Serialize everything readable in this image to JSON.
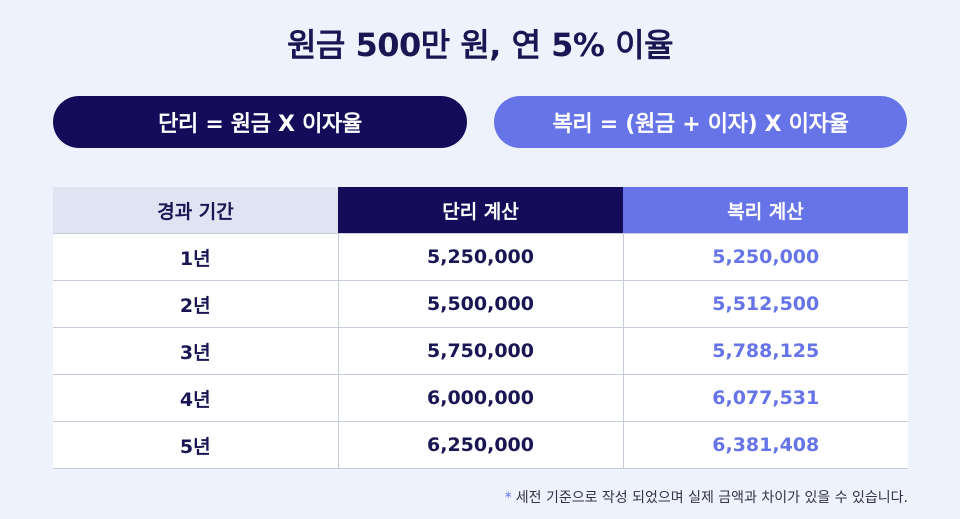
{
  "title": "원금 500만 원, 연 5% 이율",
  "formulas": {
    "simple": "단리 = 원금 X 이자율",
    "compound": "복리 = (원금 + 이자) X 이자율"
  },
  "table": {
    "headers": [
      "경과 기간",
      "단리 계산",
      "복리 계산"
    ],
    "rows": [
      {
        "period": "1년",
        "simple": "5,250,000",
        "compound": "5,250,000"
      },
      {
        "period": "2년",
        "simple": "5,500,000",
        "compound": "5,512,500"
      },
      {
        "period": "3년",
        "simple": "5,750,000",
        "compound": "5,788,125"
      },
      {
        "period": "4년",
        "simple": "6,000,000",
        "compound": "6,077,531"
      },
      {
        "period": "5년",
        "simple": "6,250,000",
        "compound": "6,381,408"
      }
    ]
  },
  "note": {
    "marker": "*",
    "text": "세전 기준으로 작성 되었으며 실제 금액과 차이가 있을 수 있습니다."
  },
  "colors": {
    "navy": "#140b59",
    "accent": "#6674e8",
    "background": "#eef2fd",
    "header_gray": "#dfe3f2"
  }
}
